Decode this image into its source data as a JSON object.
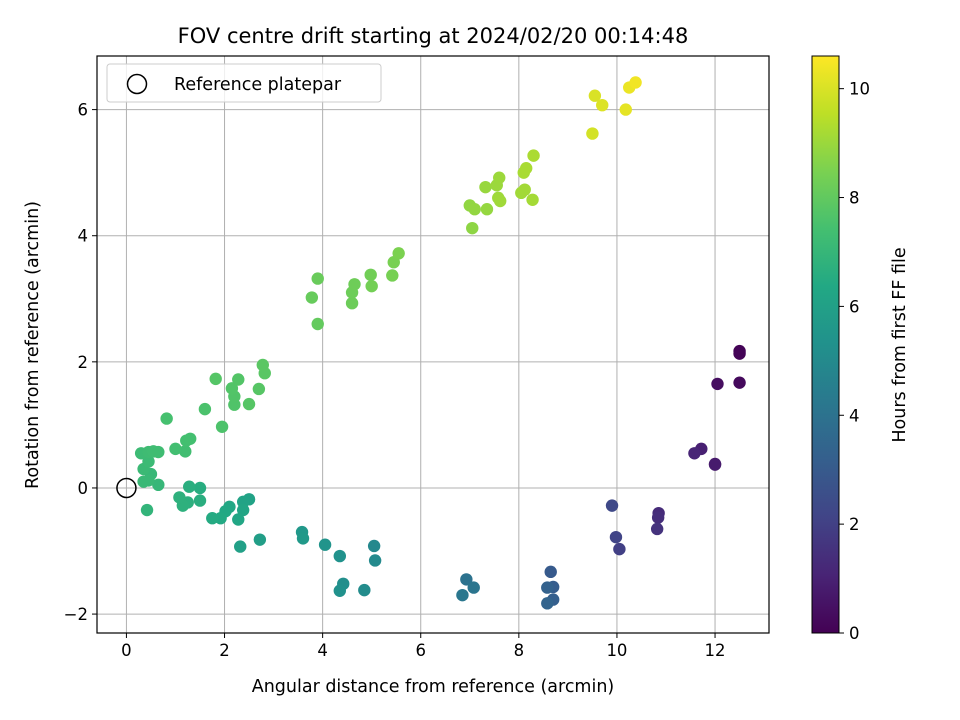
{
  "chart_data": {
    "type": "scatter",
    "title": "FOV centre drift starting at 2024/02/20 00:14:48",
    "xlabel": "Angular distance from reference (arcmin)",
    "ylabel": "Rotation from reference (arcmin)",
    "xlim": [
      -0.6,
      13.1
    ],
    "ylim": [
      -2.3,
      6.85
    ],
    "xticks": [
      0,
      2,
      4,
      6,
      8,
      10,
      12
    ],
    "yticks": [
      -2,
      0,
      2,
      4,
      6
    ],
    "grid": true,
    "legend": {
      "placement": "top-left",
      "entries": [
        "Reference platepar"
      ]
    },
    "reference_point": {
      "x": 0,
      "y": 0
    },
    "colorbar": {
      "label": "Hours from first FF file",
      "colormap": "viridis",
      "range": [
        0,
        10.6
      ],
      "ticks": [
        0,
        2,
        4,
        6,
        8,
        10
      ]
    },
    "points": [
      {
        "x": 12.5,
        "y": 2.17,
        "c": 0.05
      },
      {
        "x": 12.5,
        "y": 2.13,
        "c": 0.1
      },
      {
        "x": 12.5,
        "y": 1.67,
        "c": 0.25
      },
      {
        "x": 12.05,
        "y": 1.65,
        "c": 0.4
      },
      {
        "x": 12.0,
        "y": 0.38,
        "c": 0.7
      },
      {
        "x": 12.0,
        "y": 0.37,
        "c": 0.8
      },
      {
        "x": 11.72,
        "y": 0.62,
        "c": 0.95
      },
      {
        "x": 11.58,
        "y": 0.55,
        "c": 1.1
      },
      {
        "x": 10.85,
        "y": -0.4,
        "c": 1.3
      },
      {
        "x": 10.84,
        "y": -0.47,
        "c": 1.4
      },
      {
        "x": 10.82,
        "y": -0.65,
        "c": 1.55
      },
      {
        "x": 10.05,
        "y": -0.97,
        "c": 2.0
      },
      {
        "x": 9.98,
        "y": -0.78,
        "c": 2.15
      },
      {
        "x": 9.9,
        "y": -0.28,
        "c": 2.3
      },
      {
        "x": 8.65,
        "y": -1.33,
        "c": 3.0
      },
      {
        "x": 8.7,
        "y": -1.57,
        "c": 3.1
      },
      {
        "x": 8.7,
        "y": -1.77,
        "c": 3.2
      },
      {
        "x": 8.58,
        "y": -1.58,
        "c": 3.3
      },
      {
        "x": 8.58,
        "y": -1.83,
        "c": 3.4
      },
      {
        "x": 6.93,
        "y": -1.45,
        "c": 4.0
      },
      {
        "x": 7.08,
        "y": -1.58,
        "c": 4.1
      },
      {
        "x": 6.85,
        "y": -1.7,
        "c": 4.2
      },
      {
        "x": 5.05,
        "y": -0.92,
        "c": 4.9
      },
      {
        "x": 5.07,
        "y": -1.15,
        "c": 5.0
      },
      {
        "x": 4.85,
        "y": -1.62,
        "c": 5.1
      },
      {
        "x": 4.42,
        "y": -1.52,
        "c": 5.2
      },
      {
        "x": 4.35,
        "y": -1.63,
        "c": 5.3
      },
      {
        "x": 4.35,
        "y": -1.08,
        "c": 5.35
      },
      {
        "x": 4.05,
        "y": -0.9,
        "c": 5.45
      },
      {
        "x": 3.58,
        "y": -0.7,
        "c": 5.6
      },
      {
        "x": 3.6,
        "y": -0.8,
        "c": 5.65
      },
      {
        "x": 2.72,
        "y": -0.82,
        "c": 5.9
      },
      {
        "x": 2.32,
        "y": -0.93,
        "c": 6.0
      },
      {
        "x": 2.5,
        "y": -0.18,
        "c": 6.1
      },
      {
        "x": 2.38,
        "y": -0.22,
        "c": 6.15
      },
      {
        "x": 2.38,
        "y": -0.35,
        "c": 6.2
      },
      {
        "x": 2.28,
        "y": -0.5,
        "c": 6.25
      },
      {
        "x": 2.1,
        "y": -0.3,
        "c": 6.3
      },
      {
        "x": 2.02,
        "y": -0.37,
        "c": 6.35
      },
      {
        "x": 1.92,
        "y": -0.48,
        "c": 6.4
      },
      {
        "x": 1.75,
        "y": -0.48,
        "c": 6.45
      },
      {
        "x": 1.5,
        "y": 0.0,
        "c": 6.55
      },
      {
        "x": 1.5,
        "y": -0.2,
        "c": 6.6
      },
      {
        "x": 1.28,
        "y": 0.02,
        "c": 6.65
      },
      {
        "x": 1.25,
        "y": -0.23,
        "c": 6.7
      },
      {
        "x": 1.15,
        "y": -0.28,
        "c": 6.72
      },
      {
        "x": 1.08,
        "y": -0.15,
        "c": 6.75
      },
      {
        "x": 0.42,
        "y": -0.35,
        "c": 6.9
      },
      {
        "x": 0.65,
        "y": 0.05,
        "c": 7.0
      },
      {
        "x": 0.5,
        "y": 0.22,
        "c": 7.05
      },
      {
        "x": 0.45,
        "y": 0.12,
        "c": 7.1
      },
      {
        "x": 0.35,
        "y": 0.1,
        "c": 7.12
      },
      {
        "x": 0.35,
        "y": 0.3,
        "c": 7.15
      },
      {
        "x": 0.45,
        "y": 0.42,
        "c": 7.18
      },
      {
        "x": 0.3,
        "y": 0.55,
        "c": 7.2
      },
      {
        "x": 0.45,
        "y": 0.57,
        "c": 7.25
      },
      {
        "x": 0.55,
        "y": 0.58,
        "c": 7.28
      },
      {
        "x": 0.65,
        "y": 0.57,
        "c": 7.3
      },
      {
        "x": 1.2,
        "y": 0.58,
        "c": 7.35
      },
      {
        "x": 1.0,
        "y": 0.62,
        "c": 7.38
      },
      {
        "x": 1.22,
        "y": 0.75,
        "c": 7.4
      },
      {
        "x": 1.3,
        "y": 0.78,
        "c": 7.42
      },
      {
        "x": 0.82,
        "y": 1.1,
        "c": 7.45
      },
      {
        "x": 1.6,
        "y": 1.25,
        "c": 7.55
      },
      {
        "x": 1.95,
        "y": 0.97,
        "c": 7.6
      },
      {
        "x": 2.2,
        "y": 1.32,
        "c": 7.65
      },
      {
        "x": 2.2,
        "y": 1.45,
        "c": 7.68
      },
      {
        "x": 2.15,
        "y": 1.58,
        "c": 7.7
      },
      {
        "x": 2.28,
        "y": 1.72,
        "c": 7.72
      },
      {
        "x": 1.82,
        "y": 1.73,
        "c": 7.75
      },
      {
        "x": 2.5,
        "y": 1.33,
        "c": 7.78
      },
      {
        "x": 2.7,
        "y": 1.57,
        "c": 7.8
      },
      {
        "x": 2.82,
        "y": 1.82,
        "c": 7.83
      },
      {
        "x": 2.78,
        "y": 1.95,
        "c": 7.85
      },
      {
        "x": 3.9,
        "y": 2.6,
        "c": 8.05
      },
      {
        "x": 3.78,
        "y": 3.02,
        "c": 8.1
      },
      {
        "x": 3.9,
        "y": 3.32,
        "c": 8.15
      },
      {
        "x": 4.6,
        "y": 2.93,
        "c": 8.2
      },
      {
        "x": 4.6,
        "y": 3.1,
        "c": 8.22
      },
      {
        "x": 4.65,
        "y": 3.23,
        "c": 8.25
      },
      {
        "x": 4.98,
        "y": 3.38,
        "c": 8.3
      },
      {
        "x": 5.0,
        "y": 3.2,
        "c": 8.35
      },
      {
        "x": 5.42,
        "y": 3.37,
        "c": 8.4
      },
      {
        "x": 5.45,
        "y": 3.58,
        "c": 8.45
      },
      {
        "x": 5.55,
        "y": 3.72,
        "c": 8.5
      },
      {
        "x": 7.05,
        "y": 4.12,
        "c": 8.8
      },
      {
        "x": 7.0,
        "y": 4.48,
        "c": 8.85
      },
      {
        "x": 7.1,
        "y": 4.42,
        "c": 8.88
      },
      {
        "x": 7.35,
        "y": 4.42,
        "c": 8.9
      },
      {
        "x": 7.32,
        "y": 4.77,
        "c": 8.95
      },
      {
        "x": 7.55,
        "y": 4.8,
        "c": 9.0
      },
      {
        "x": 7.6,
        "y": 4.92,
        "c": 9.02
      },
      {
        "x": 7.58,
        "y": 4.6,
        "c": 9.05
      },
      {
        "x": 7.62,
        "y": 4.55,
        "c": 9.08
      },
      {
        "x": 8.05,
        "y": 4.68,
        "c": 9.1
      },
      {
        "x": 8.12,
        "y": 4.73,
        "c": 9.12
      },
      {
        "x": 8.28,
        "y": 4.57,
        "c": 9.15
      },
      {
        "x": 8.1,
        "y": 5.0,
        "c": 9.2
      },
      {
        "x": 8.15,
        "y": 5.07,
        "c": 9.22
      },
      {
        "x": 8.3,
        "y": 5.27,
        "c": 9.25
      },
      {
        "x": 9.5,
        "y": 5.62,
        "c": 9.9
      },
      {
        "x": 9.55,
        "y": 6.22,
        "c": 10.0
      },
      {
        "x": 9.7,
        "y": 6.07,
        "c": 10.05
      },
      {
        "x": 10.18,
        "y": 6.0,
        "c": 10.2
      },
      {
        "x": 10.25,
        "y": 6.35,
        "c": 10.3
      },
      {
        "x": 10.38,
        "y": 6.43,
        "c": 10.4
      }
    ]
  }
}
